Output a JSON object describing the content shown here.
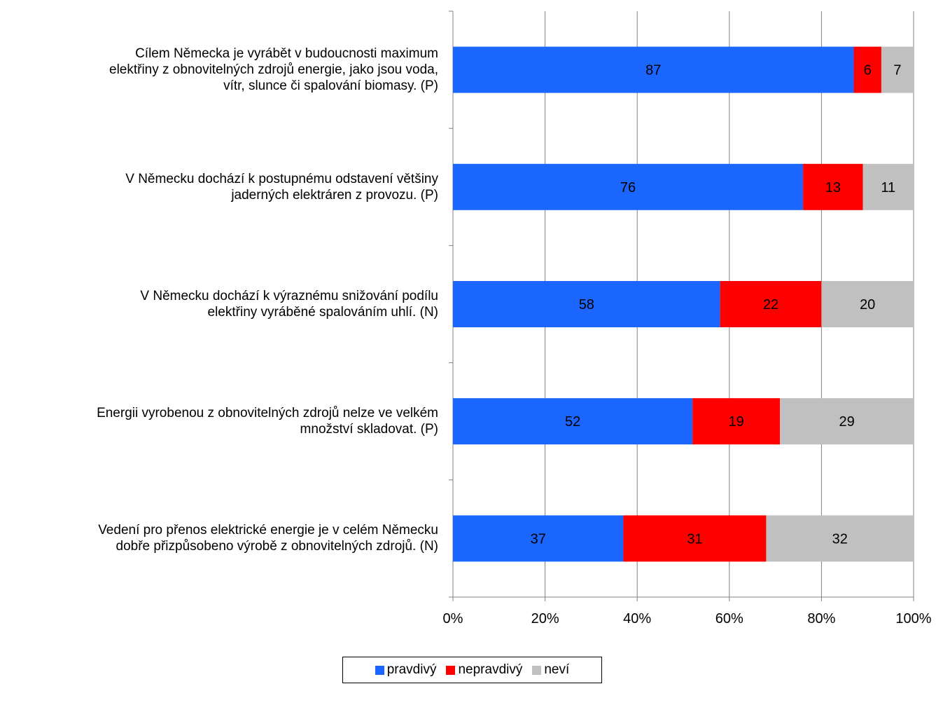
{
  "chart_data": {
    "type": "bar",
    "orientation": "horizontal",
    "stacked": "percent",
    "categories": [
      "Cílem Německa je vyrábět v budoucnosti maximum\nelektřiny z obnovitelných zdrojů energie, jako jsou voda,\nvítr, slunce či spalování biomasy. (P)",
      "V Německu dochází k postupnému odstavení většiny\njaderných elektráren z provozu. (P)",
      "V Německu dochází k výraznému snižování podílu\nelektřiny vyráběné spalováním uhlí. (N)",
      "Energii vyrobenou z obnovitelných zdrojů nelze ve velkém\nmnožství skladovat. (P)",
      "Vedení pro přenos elektrické energie je v celém Německu\ndobře přizpůsobeno výrobě z obnovitelných zdrojů. (N)"
    ],
    "series": [
      {
        "name": "pravdivý",
        "color": "#1a66ff",
        "values": [
          87,
          76,
          58,
          52,
          37
        ]
      },
      {
        "name": "nepravdivý",
        "color": "#ff0000",
        "values": [
          6,
          13,
          22,
          19,
          31
        ]
      },
      {
        "name": "neví",
        "color": "#c0c0c0",
        "values": [
          7,
          11,
          20,
          29,
          32
        ]
      }
    ],
    "xlim": [
      0,
      100
    ],
    "x_ticks": [
      "0%",
      "20%",
      "40%",
      "60%",
      "80%",
      "100%"
    ],
    "grid": "vertical",
    "legend": "bottom"
  }
}
